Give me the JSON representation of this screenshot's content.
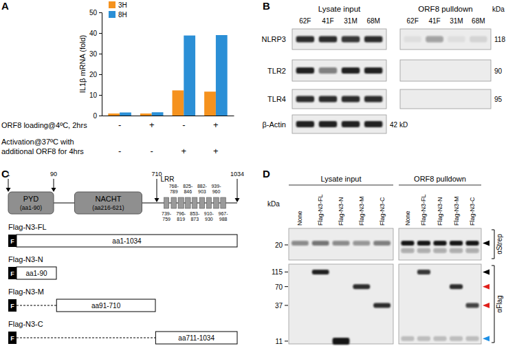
{
  "chart_data": {
    "type": "bar",
    "panel_label": "A",
    "categories": [
      null,
      null,
      null,
      null
    ],
    "series": [
      {
        "name": "3H",
        "color": "#f5921e",
        "values": [
          1.0,
          1.0,
          12.2,
          11.6
        ]
      },
      {
        "name": "8H",
        "color": "#2b8fd6",
        "values": [
          1.5,
          1.6,
          38.8,
          39.0
        ]
      }
    ],
    "y_label": "IL1β mRNA (fold)",
    "ylim": [
      0,
      50
    ],
    "yticks": [
      0,
      10,
      20,
      30,
      40,
      50
    ],
    "legend": "top-left",
    "condition_rows": [
      {
        "label": [
          "ORF8 loading@4ºC, 2hrs"
        ],
        "marks": [
          "-",
          "+",
          "-",
          "+"
        ]
      },
      {
        "label": [
          "Activation@37ºC with",
          "additional ORF8 for 4hrs"
        ],
        "marks": [
          "-",
          "-",
          "+",
          "+"
        ]
      }
    ]
  },
  "panel_b": {
    "label": "B",
    "unit": "kDa",
    "groups": [
      {
        "title": "Lysate input",
        "lanes": [
          "62F",
          "41F",
          "31M",
          "68M"
        ]
      },
      {
        "title": "ORF8 pulldown",
        "lanes": [
          "62F",
          "41F",
          "31M",
          "68M"
        ]
      }
    ],
    "rows": [
      {
        "name": "NLRP3",
        "size": 118,
        "intensities": [
          [
            0.9,
            0.9,
            0.85,
            0.9
          ],
          [
            0.06,
            0.35,
            0.06,
            0.1
          ]
        ]
      },
      {
        "name": "TLR2",
        "size": 90,
        "intensities": [
          [
            0.95,
            0.5,
            0.95,
            0.95
          ],
          [
            0,
            0,
            0,
            0
          ]
        ]
      },
      {
        "name": "TLR4",
        "size": 95,
        "intensities": [
          [
            0.9,
            0.9,
            0.9,
            0.9
          ],
          [
            0,
            0,
            0,
            0
          ]
        ]
      },
      {
        "name": "β-Actin",
        "size": {
          "value": 42,
          "label": "42 kD"
        },
        "intensities": [
          [
            0.95,
            0.95,
            0.95,
            0.95
          ],
          null
        ]
      }
    ]
  },
  "panel_c": {
    "label": "C",
    "positions": [
      1,
      90,
      710,
      1034
    ],
    "domains": [
      {
        "name": "PYD",
        "range_label": "(aa1-90)",
        "start": 1,
        "end": 90
      },
      {
        "name": "NACHT",
        "range_label": "(aa216-621)",
        "start": 216,
        "end": 621
      }
    ],
    "lrr_title": "LRR",
    "lrrs": [
      {
        "label": "739-759",
        "start": 739,
        "end": 759
      },
      {
        "label": "768-789",
        "start": 768,
        "end": 789
      },
      {
        "label": "796-819",
        "start": 796,
        "end": 819
      },
      {
        "label": "825-846",
        "start": 825,
        "end": 846
      },
      {
        "label": "853-873",
        "start": 853,
        "end": 873
      },
      {
        "label": "882-903",
        "start": 882,
        "end": 903
      },
      {
        "label": "910-930",
        "start": 910,
        "end": 930
      },
      {
        "label": "939-960",
        "start": 939,
        "end": 960
      },
      {
        "label": "967-988",
        "start": 967,
        "end": 988
      }
    ],
    "constructs": [
      {
        "name": "Flag-N3-FL",
        "tag": "F",
        "label": "aa1-1034",
        "start": 1,
        "end": 1034
      },
      {
        "name": "Flag-N3-N",
        "tag": "F",
        "label": "aa1-90",
        "start": 1,
        "end": 90
      },
      {
        "name": "Flag-N3-M",
        "tag": "F",
        "label": "aa91-710",
        "start": 91,
        "end": 710
      },
      {
        "name": "Flag-N3-C",
        "tag": "F",
        "label": "aa711-1034",
        "start": 711,
        "end": 1034
      }
    ]
  },
  "panel_d": {
    "label": "D",
    "unit": "kDa",
    "groups": [
      {
        "title": "Lysate input",
        "lanes": [
          "None",
          "Flag-N3-FL",
          "Flag-N3-N",
          "Flag-N3-M",
          "Flag-N3-C"
        ]
      },
      {
        "title": "ORF8 pulldown",
        "lanes": [
          "None",
          "Flag-N3-FL",
          "Flag-N3-N",
          "Flag-N3-M",
          "Flag-N3-C"
        ]
      }
    ],
    "blots": [
      {
        "antibody": "αStrep",
        "log": "y",
        "ylim": [
          32,
          13
        ],
        "yticks": [
          20
        ],
        "bands": [
          {
            "group": 0,
            "lane": 0,
            "kda": 21,
            "intensity": 0.45
          },
          {
            "group": 0,
            "lane": 1,
            "kda": 21,
            "intensity": 0.55
          },
          {
            "group": 0,
            "lane": 2,
            "kda": 21,
            "intensity": 0.45
          },
          {
            "group": 0,
            "lane": 3,
            "kda": 21,
            "intensity": 0.4
          },
          {
            "group": 0,
            "lane": 4,
            "kda": 21,
            "intensity": 0.5
          },
          {
            "group": 1,
            "lane": 0,
            "kda": 21,
            "intensity": 1.0
          },
          {
            "group": 1,
            "lane": 1,
            "kda": 21,
            "intensity": 1.0
          },
          {
            "group": 1,
            "lane": 2,
            "kda": 21,
            "intensity": 1.0
          },
          {
            "group": 1,
            "lane": 3,
            "kda": 21,
            "intensity": 1.0
          },
          {
            "group": 1,
            "lane": 4,
            "kda": 21,
            "intensity": 1.0
          },
          {
            "group": 1,
            "lane": 0,
            "kda": 17,
            "intensity": 0.3
          },
          {
            "group": 1,
            "lane": 1,
            "kda": 17,
            "intensity": 0.3
          },
          {
            "group": 1,
            "lane": 2,
            "kda": 17,
            "intensity": 0.3
          },
          {
            "group": 1,
            "lane": 3,
            "kda": 17,
            "intensity": 0.3
          },
          {
            "group": 1,
            "lane": 4,
            "kda": 17,
            "intensity": 0.3
          }
        ],
        "arrows": [
          {
            "kda": 21,
            "color": "#000000"
          }
        ]
      },
      {
        "antibody": "αFlag",
        "log": "y",
        "ylim": [
          150,
          10
        ],
        "yticks": [
          115,
          70,
          37,
          11
        ],
        "bands": [
          {
            "group": 0,
            "lane": 1,
            "kda": 115,
            "intensity": 0.95
          },
          {
            "group": 0,
            "lane": 2,
            "kda": 11,
            "intensity": 1.0
          },
          {
            "group": 0,
            "lane": 3,
            "kda": 70,
            "intensity": 0.9
          },
          {
            "group": 0,
            "lane": 4,
            "kda": 37,
            "intensity": 0.9
          },
          {
            "group": 1,
            "lane": 1,
            "kda": 115,
            "intensity": 0.85
          },
          {
            "group": 1,
            "lane": 3,
            "kda": 70,
            "intensity": 0.9
          },
          {
            "group": 1,
            "lane": 4,
            "kda": 37,
            "intensity": 0.8
          },
          {
            "group": 1,
            "lane": 0,
            "kda": 12,
            "intensity": 0.2
          },
          {
            "group": 1,
            "lane": 1,
            "kda": 12,
            "intensity": 0.2
          },
          {
            "group": 1,
            "lane": 2,
            "kda": 12,
            "intensity": 0.2
          },
          {
            "group": 1,
            "lane": 3,
            "kda": 12,
            "intensity": 0.2
          },
          {
            "group": 1,
            "lane": 4,
            "kda": 12,
            "intensity": 0.2
          }
        ],
        "arrows": [
          {
            "kda": 115,
            "color": "#000000"
          },
          {
            "kda": 70,
            "color": "#e0201b"
          },
          {
            "kda": 37,
            "color": "#e0201b"
          },
          {
            "kda": 12,
            "color": "#1e90e6"
          }
        ]
      }
    ]
  }
}
